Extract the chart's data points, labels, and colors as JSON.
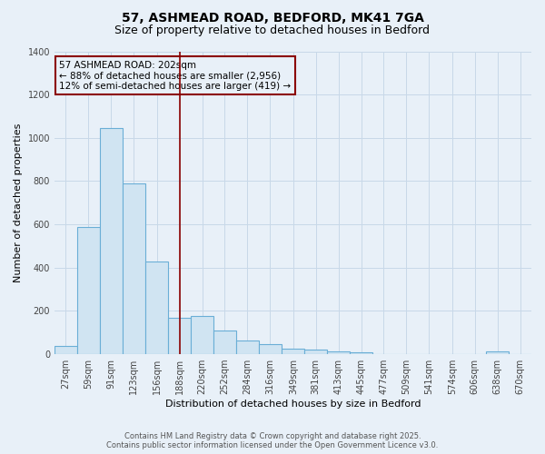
{
  "title_line1": "57, ASHMEAD ROAD, BEDFORD, MK41 7GA",
  "title_line2": "Size of property relative to detached houses in Bedford",
  "xlabel": "Distribution of detached houses by size in Bedford",
  "ylabel": "Number of detached properties",
  "footer_line1": "Contains HM Land Registry data © Crown copyright and database right 2025.",
  "footer_line2": "Contains public sector information licensed under the Open Government Licence v3.0.",
  "annotation_line1": "57 ASHMEAD ROAD: 202sqm",
  "annotation_line2": "← 88% of detached houses are smaller (2,956)",
  "annotation_line3": "12% of semi-detached houses are larger (419) →",
  "bar_color": "#d0e4f2",
  "bar_edge_color": "#6aaed6",
  "vline_color": "#8b0000",
  "background_color": "#e8f0f8",
  "grid_color": "#c8d8e8",
  "tick_label_color": "#444444",
  "categories": [
    "27sqm",
    "59sqm",
    "91sqm",
    "123sqm",
    "156sqm",
    "188sqm",
    "220sqm",
    "252sqm",
    "284sqm",
    "316sqm",
    "349sqm",
    "381sqm",
    "413sqm",
    "445sqm",
    "477sqm",
    "509sqm",
    "541sqm",
    "574sqm",
    "606sqm",
    "638sqm",
    "670sqm"
  ],
  "bin_left_edges": [
    27,
    59,
    91,
    123,
    156,
    188,
    220,
    252,
    284,
    316,
    349,
    381,
    413,
    445,
    477,
    509,
    541,
    574,
    606,
    638,
    670
  ],
  "bin_width": 32,
  "values": [
    40,
    590,
    1045,
    790,
    430,
    170,
    175,
    110,
    65,
    48,
    25,
    20,
    13,
    8,
    0,
    0,
    0,
    0,
    0,
    15,
    0
  ],
  "vline_x": 204,
  "ylim": [
    0,
    1400
  ],
  "yticks": [
    0,
    200,
    400,
    600,
    800,
    1000,
    1200,
    1400
  ],
  "title_fontsize": 10,
  "subtitle_fontsize": 9,
  "axis_label_fontsize": 8,
  "tick_fontsize": 7,
  "footer_fontsize": 6,
  "annotation_fontsize": 7.5
}
